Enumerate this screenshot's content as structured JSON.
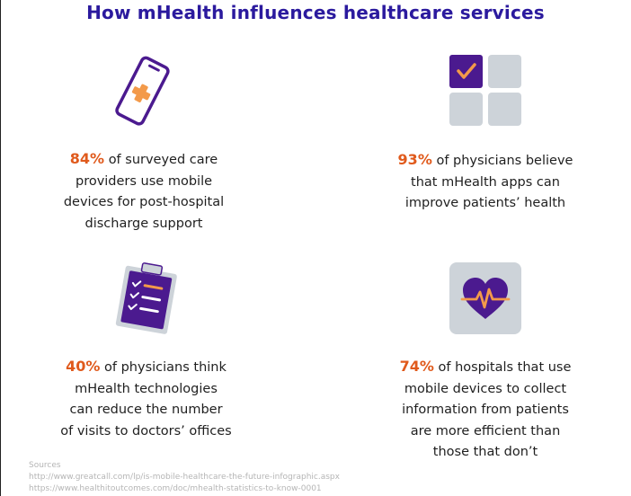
{
  "title": "How mHealth influences healthcare services",
  "colors": {
    "title": "#2b1a9e",
    "accent": "#e05a1c",
    "icon_purple": "#4b1a8f",
    "icon_grey": "#cdd3d9",
    "text": "#1f1f1f",
    "sources": "#b5b5b5"
  },
  "stats": [
    {
      "icon": "smartphone-medical-icon",
      "percent": "84%",
      "lines": [
        "of surveyed care",
        "providers use mobile",
        "devices for post-hospital",
        "discharge support"
      ]
    },
    {
      "icon": "checkbox-grid-icon",
      "percent": "93%",
      "lines": [
        "of physicians believe",
        "that mHealth apps can",
        "improve patients’ health"
      ]
    },
    {
      "icon": "clipboard-checklist-icon",
      "percent": "40%",
      "lines": [
        "of physicians think",
        "mHealth technologies",
        "can reduce the number",
        "of visits to doctors’ offices"
      ]
    },
    {
      "icon": "heart-pulse-icon",
      "percent": "74%",
      "lines": [
        "of hospitals that use",
        "mobile devices to collect",
        "information from patients",
        "are more efficient than",
        "those that don’t"
      ]
    }
  ],
  "sources": {
    "label": "Sources",
    "links": [
      "http://www.greatcall.com/lp/is-mobile-healthcare-the-future-infographic.aspx",
      "https://www.healthitoutcomes.com/doc/mhealth-statistics-to-know-0001"
    ]
  }
}
